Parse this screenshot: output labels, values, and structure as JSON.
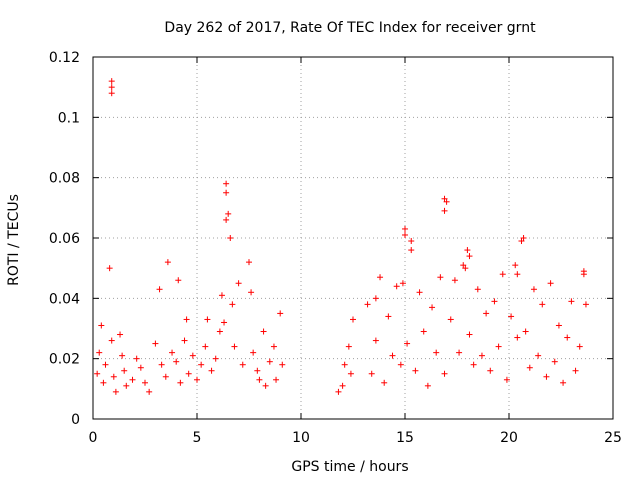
{
  "chart_data": {
    "type": "scatter",
    "title": "Day 262 of 2017, Rate Of TEC Index for receiver grnt",
    "xlabel": "GPS time / hours",
    "ylabel": "ROTI / TECUs",
    "xlim": [
      0,
      25
    ],
    "ylim": [
      0,
      0.12
    ],
    "xticks": [
      0,
      5,
      10,
      15,
      20,
      25
    ],
    "yticks": [
      0,
      0.02,
      0.04,
      0.06,
      0.08,
      0.1,
      0.12
    ],
    "xtick_labels": [
      "0",
      "5",
      "10",
      "15",
      "20",
      "25"
    ],
    "ytick_labels": [
      "0",
      "0.02",
      "0.04",
      "0.06",
      "0.08",
      "0.1",
      "0.12"
    ],
    "grid": true,
    "marker": "+",
    "color": "#ff0000",
    "series": [
      {
        "name": "ROTI",
        "x": [
          0.2,
          0.3,
          0.4,
          0.5,
          0.6,
          0.8,
          0.9,
          1.0,
          1.1,
          1.3,
          1.4,
          1.5,
          1.6,
          1.9,
          2.1,
          2.3,
          2.5,
          2.7,
          3.0,
          3.2,
          3.3,
          3.5,
          3.6,
          3.8,
          4.0,
          4.1,
          4.2,
          4.4,
          4.5,
          4.6,
          4.8,
          5.0,
          5.2,
          5.4,
          5.5,
          5.7,
          5.9,
          6.1,
          6.2,
          6.3,
          6.4,
          6.5,
          6.6,
          6.7,
          6.8,
          7.0,
          7.2,
          7.5,
          7.6,
          7.7,
          7.9,
          8.0,
          8.2,
          8.3,
          8.5,
          8.7,
          8.8,
          9.0,
          9.1,
          11.8,
          12.0,
          12.1,
          12.3,
          12.4,
          12.5,
          13.2,
          13.4,
          13.6,
          13.8,
          14.0,
          14.2,
          14.4,
          14.6,
          14.8,
          15.0,
          15.1,
          15.3,
          15.5,
          15.7,
          15.9,
          16.1,
          16.3,
          16.5,
          16.7,
          16.9,
          17.0,
          17.2,
          17.4,
          17.6,
          17.8,
          18.0,
          18.1,
          18.3,
          18.5,
          18.7,
          18.9,
          19.1,
          19.3,
          19.5,
          19.7,
          19.9,
          20.1,
          20.3,
          20.4,
          20.6,
          20.8,
          21.0,
          21.2,
          21.4,
          21.6,
          21.8,
          22.0,
          22.2,
          22.4,
          22.6,
          22.8,
          23.0,
          23.2,
          23.4,
          23.6,
          23.7,
          0.9,
          0.9,
          0.9,
          6.4,
          6.4,
          16.9,
          16.9,
          15.0,
          15.3,
          20.7,
          20.4,
          18.1,
          13.6,
          23.6,
          14.9,
          17.9
        ],
        "y": [
          0.015,
          0.022,
          0.031,
          0.012,
          0.018,
          0.05,
          0.026,
          0.014,
          0.009,
          0.028,
          0.021,
          0.016,
          0.011,
          0.013,
          0.02,
          0.017,
          0.012,
          0.009,
          0.025,
          0.043,
          0.018,
          0.014,
          0.052,
          0.022,
          0.019,
          0.046,
          0.012,
          0.026,
          0.033,
          0.015,
          0.021,
          0.013,
          0.018,
          0.024,
          0.033,
          0.016,
          0.02,
          0.029,
          0.041,
          0.032,
          0.078,
          0.068,
          0.06,
          0.038,
          0.024,
          0.045,
          0.018,
          0.052,
          0.042,
          0.022,
          0.016,
          0.013,
          0.029,
          0.011,
          0.019,
          0.024,
          0.013,
          0.035,
          0.018,
          0.009,
          0.011,
          0.018,
          0.024,
          0.015,
          0.033,
          0.038,
          0.015,
          0.026,
          0.047,
          0.012,
          0.034,
          0.021,
          0.044,
          0.018,
          0.063,
          0.025,
          0.059,
          0.016,
          0.042,
          0.029,
          0.011,
          0.037,
          0.022,
          0.047,
          0.015,
          0.072,
          0.033,
          0.046,
          0.022,
          0.051,
          0.056,
          0.028,
          0.018,
          0.043,
          0.021,
          0.035,
          0.016,
          0.039,
          0.024,
          0.048,
          0.013,
          0.034,
          0.051,
          0.027,
          0.059,
          0.029,
          0.017,
          0.043,
          0.021,
          0.038,
          0.014,
          0.045,
          0.019,
          0.031,
          0.012,
          0.027,
          0.039,
          0.016,
          0.024,
          0.049,
          0.038,
          0.112,
          0.108,
          0.11,
          0.075,
          0.066,
          0.073,
          0.069,
          0.061,
          0.056,
          0.06,
          0.048,
          0.054,
          0.04,
          0.048,
          0.045,
          0.05
        ]
      }
    ]
  }
}
